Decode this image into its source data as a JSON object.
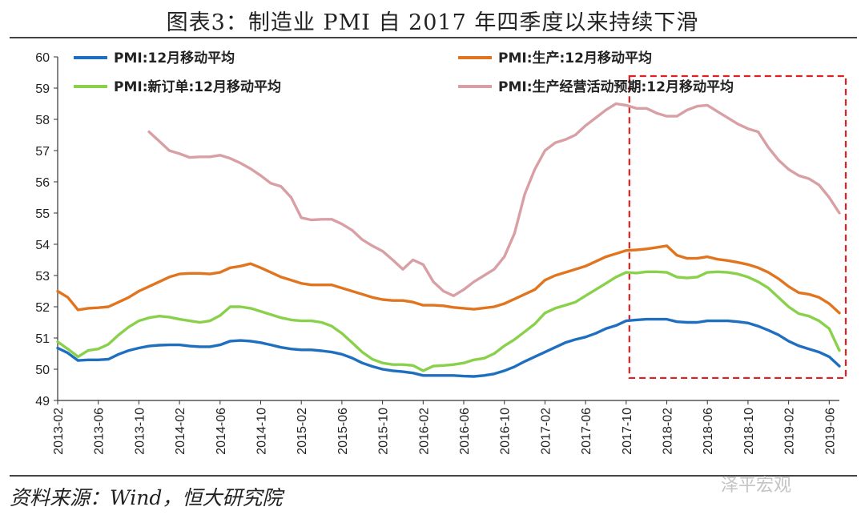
{
  "title": "图表3：制造业 PMI 自 2017 年四季度以来持续下滑",
  "source": "资料来源：Wind，恒大研究院",
  "watermark": "泽平宏观",
  "chart_data": {
    "type": "line",
    "title": "图表3：制造业 PMI 自 2017 年四季度以来持续下滑",
    "xlabel": "",
    "ylabel": "",
    "ylim": [
      49,
      60
    ],
    "yticks": [
      49,
      50,
      51,
      52,
      53,
      54,
      55,
      56,
      57,
      58,
      59,
      60
    ],
    "x_tick_labels": [
      "2013-02",
      "2013-06",
      "2013-10",
      "2014-02",
      "2014-06",
      "2014-10",
      "2015-02",
      "2015-06",
      "2015-10",
      "2016-02",
      "2016-06",
      "2016-10",
      "2017-02",
      "2017-06",
      "2017-10",
      "2018-02",
      "2018-06",
      "2018-10",
      "2019-02",
      "2019-06"
    ],
    "x": [
      "2013-02",
      "2013-03",
      "2013-04",
      "2013-05",
      "2013-06",
      "2013-07",
      "2013-08",
      "2013-09",
      "2013-10",
      "2013-11",
      "2013-12",
      "2014-01",
      "2014-02",
      "2014-03",
      "2014-04",
      "2014-05",
      "2014-06",
      "2014-07",
      "2014-08",
      "2014-09",
      "2014-10",
      "2014-11",
      "2014-12",
      "2015-01",
      "2015-02",
      "2015-03",
      "2015-04",
      "2015-05",
      "2015-06",
      "2015-07",
      "2015-08",
      "2015-09",
      "2015-10",
      "2015-11",
      "2015-12",
      "2016-01",
      "2016-02",
      "2016-03",
      "2016-04",
      "2016-05",
      "2016-06",
      "2016-07",
      "2016-08",
      "2016-09",
      "2016-10",
      "2016-11",
      "2016-12",
      "2017-01",
      "2017-02",
      "2017-03",
      "2017-04",
      "2017-05",
      "2017-06",
      "2017-07",
      "2017-08",
      "2017-09",
      "2017-10",
      "2017-11",
      "2017-12",
      "2018-01",
      "2018-02",
      "2018-03",
      "2018-04",
      "2018-05",
      "2018-06",
      "2018-07",
      "2018-08",
      "2018-09",
      "2018-10",
      "2018-11",
      "2018-12",
      "2019-01",
      "2019-02",
      "2019-03",
      "2019-04",
      "2019-05",
      "2019-06",
      "2019-07"
    ],
    "series": [
      {
        "name": "PMI:12月移动平均",
        "color": "#1f6fc0",
        "values": [
          50.68,
          50.52,
          50.28,
          50.3,
          50.3,
          50.32,
          50.48,
          50.6,
          50.68,
          50.74,
          50.77,
          50.78,
          50.78,
          50.74,
          50.72,
          50.72,
          50.78,
          50.9,
          50.92,
          50.9,
          50.85,
          50.78,
          50.7,
          50.65,
          50.62,
          50.62,
          50.59,
          50.55,
          50.48,
          50.36,
          50.2,
          50.09,
          50.0,
          49.95,
          49.92,
          49.88,
          49.8,
          49.8,
          49.8,
          49.8,
          49.78,
          49.77,
          49.8,
          49.85,
          49.95,
          50.08,
          50.25,
          50.4,
          50.55,
          50.7,
          50.85,
          50.95,
          51.03,
          51.15,
          51.3,
          51.4,
          51.55,
          51.58,
          51.6,
          51.6,
          51.6,
          51.52,
          51.5,
          51.5,
          51.55,
          51.55,
          51.55,
          51.52,
          51.48,
          51.38,
          51.25,
          51.1,
          50.9,
          50.75,
          50.65,
          50.55,
          50.4,
          50.1
        ]
      },
      {
        "name": "PMI:生产:12月移动平均",
        "color": "#e1751f",
        "values": [
          52.5,
          52.3,
          51.9,
          51.95,
          51.97,
          52.0,
          52.15,
          52.3,
          52.5,
          52.65,
          52.8,
          52.95,
          53.05,
          53.07,
          53.07,
          53.05,
          53.1,
          53.25,
          53.3,
          53.38,
          53.25,
          53.1,
          52.95,
          52.85,
          52.75,
          52.7,
          52.7,
          52.7,
          52.6,
          52.5,
          52.4,
          52.3,
          52.23,
          52.2,
          52.2,
          52.15,
          52.05,
          52.05,
          52.03,
          51.98,
          51.95,
          51.92,
          51.96,
          52.0,
          52.1,
          52.25,
          52.4,
          52.55,
          52.85,
          53.0,
          53.1,
          53.2,
          53.3,
          53.45,
          53.6,
          53.7,
          53.8,
          53.82,
          53.85,
          53.9,
          53.95,
          53.65,
          53.55,
          53.55,
          53.6,
          53.52,
          53.48,
          53.42,
          53.35,
          53.25,
          53.1,
          52.9,
          52.65,
          52.45,
          52.4,
          52.3,
          52.1,
          51.8
        ]
      },
      {
        "name": "PMI:新订单:12月移动平均",
        "color": "#8ad14b",
        "values": [
          50.88,
          50.65,
          50.4,
          50.6,
          50.65,
          50.8,
          51.1,
          51.35,
          51.55,
          51.65,
          51.7,
          51.67,
          51.6,
          51.55,
          51.5,
          51.55,
          51.72,
          52.0,
          52.0,
          51.95,
          51.85,
          51.75,
          51.65,
          51.58,
          51.55,
          51.55,
          51.5,
          51.38,
          51.15,
          50.85,
          50.55,
          50.32,
          50.2,
          50.15,
          50.15,
          50.12,
          49.95,
          50.1,
          50.12,
          50.15,
          50.2,
          50.3,
          50.35,
          50.5,
          50.75,
          50.95,
          51.2,
          51.45,
          51.8,
          51.95,
          52.05,
          52.15,
          52.35,
          52.55,
          52.75,
          52.95,
          53.1,
          53.08,
          53.12,
          53.12,
          53.1,
          52.95,
          52.92,
          52.95,
          53.1,
          53.12,
          53.1,
          53.05,
          52.95,
          52.8,
          52.6,
          52.3,
          52.0,
          51.78,
          51.7,
          51.55,
          51.3,
          50.6
        ]
      },
      {
        "name": "PMI:生产经营活动预期:12月移动平均",
        "color": "#d8a0a4",
        "values": [
          null,
          null,
          null,
          null,
          null,
          null,
          null,
          null,
          null,
          57.6,
          57.3,
          57.0,
          56.9,
          56.78,
          56.8,
          56.8,
          56.85,
          56.75,
          56.6,
          56.42,
          56.2,
          55.95,
          55.85,
          55.5,
          54.85,
          54.78,
          54.8,
          54.8,
          54.65,
          54.45,
          54.15,
          53.95,
          53.78,
          53.5,
          53.2,
          53.5,
          53.35,
          52.8,
          52.5,
          52.35,
          52.55,
          52.8,
          53.0,
          53.2,
          53.6,
          54.35,
          55.6,
          56.4,
          57.0,
          57.25,
          57.35,
          57.5,
          57.8,
          58.05,
          58.3,
          58.5,
          58.45,
          58.35,
          58.35,
          58.2,
          58.1,
          58.1,
          58.3,
          58.42,
          58.45,
          58.25,
          58.05,
          57.85,
          57.7,
          57.6,
          57.1,
          56.7,
          56.4,
          56.2,
          56.1,
          55.9,
          55.5,
          55.0
        ]
      }
    ],
    "legend": "top, two columns",
    "highlight_box": {
      "x_start": "2017-10",
      "x_end": "2019-07",
      "y_range": [
        49.72,
        60.0
      ],
      "style": "red dashed"
    },
    "grid": false
  }
}
